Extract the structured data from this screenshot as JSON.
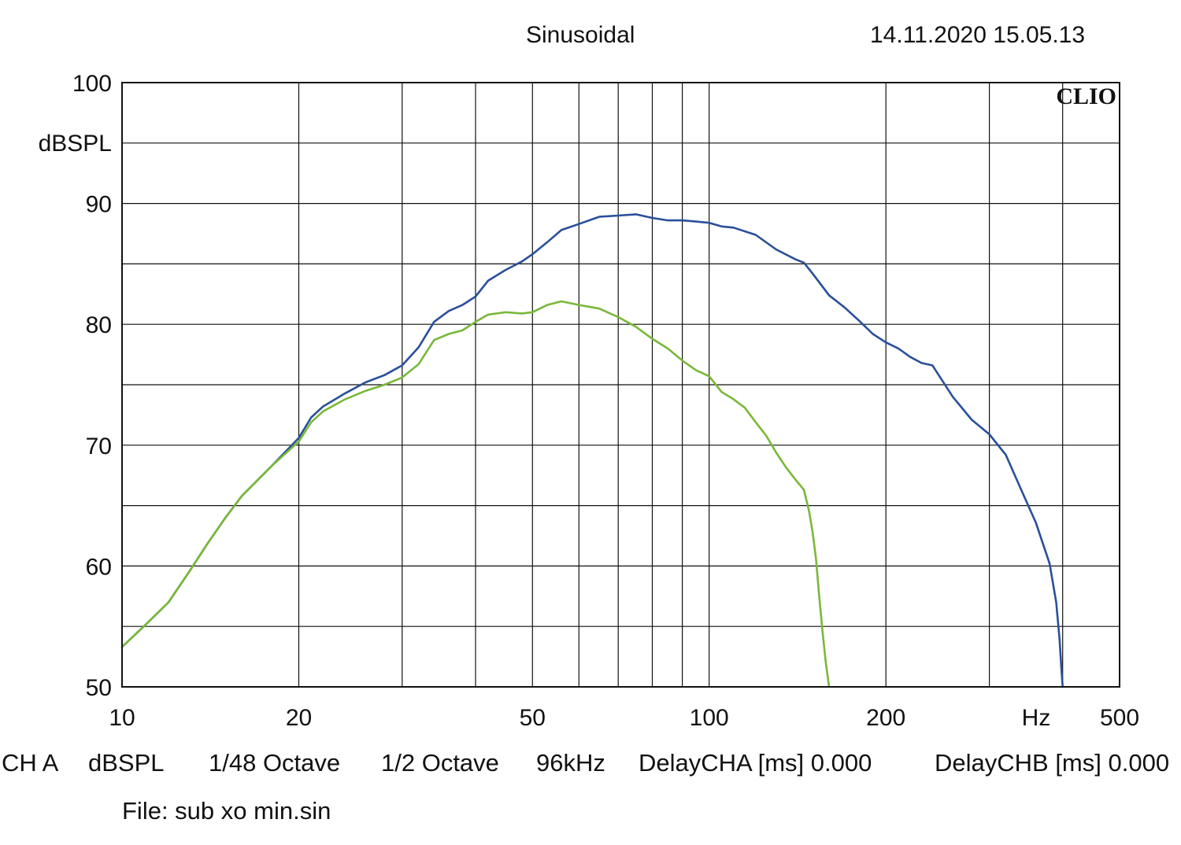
{
  "header": {
    "mode": "Sinusoidal",
    "timestamp": "14.11.2020 15.05.13",
    "brand": "CLIO"
  },
  "footer": {
    "channel": "CH A",
    "unit": "dBSPL",
    "resolution": "1/48 Octave",
    "smoothing": "1/2 Octave",
    "sample_rate": "96kHz",
    "delay_a": "DelayCHA [ms] 0.000",
    "delay_b": "DelayCHB [ms] 0.000",
    "file": "File: sub xo min.sin"
  },
  "chart_data": {
    "type": "line",
    "xscale": "log",
    "xlim": [
      10,
      500
    ],
    "ylim": [
      50,
      100
    ],
    "grid": true,
    "ylabel": "dBSPL",
    "xlabel": "Hz",
    "x_ticks": [
      {
        "value": 10,
        "label": "10"
      },
      {
        "value": 20,
        "label": "20"
      },
      {
        "value": 50,
        "label": "50"
      },
      {
        "value": 100,
        "label": "100"
      },
      {
        "value": 200,
        "label": "200"
      },
      {
        "value": 500,
        "label": "500"
      }
    ],
    "y_ticks": [
      {
        "value": 50,
        "label": "50"
      },
      {
        "value": 60,
        "label": "60"
      },
      {
        "value": 70,
        "label": "70"
      },
      {
        "value": 80,
        "label": "80"
      },
      {
        "value": 90,
        "label": "90"
      },
      {
        "value": 100,
        "label": "100"
      }
    ],
    "series": [
      {
        "color": "#2a4f9a",
        "x": [
          10,
          11,
          12,
          13,
          14,
          15,
          16,
          18,
          20,
          21,
          22,
          24,
          26,
          28,
          30,
          32,
          34,
          36,
          38,
          40,
          42,
          45,
          48,
          50,
          53,
          56,
          60,
          65,
          70,
          75,
          80,
          85,
          90,
          95,
          100,
          105,
          110,
          120,
          130,
          140,
          145,
          150,
          160,
          170,
          180,
          190,
          200,
          210,
          220,
          230,
          240,
          260,
          280,
          300,
          320,
          340,
          360,
          380,
          390,
          395,
          398,
          400
        ],
        "y": [
          53.3,
          55.2,
          57.0,
          59.5,
          61.9,
          64.0,
          65.8,
          68.3,
          70.6,
          72.3,
          73.2,
          74.3,
          75.2,
          75.8,
          76.6,
          78.1,
          80.2,
          81.1,
          81.6,
          82.3,
          83.6,
          84.5,
          85.2,
          85.8,
          86.8,
          87.8,
          88.3,
          88.9,
          89.0,
          89.1,
          88.8,
          88.6,
          88.6,
          88.5,
          88.4,
          88.1,
          88.0,
          87.4,
          86.2,
          85.4,
          85.1,
          84.2,
          82.4,
          81.4,
          80.3,
          79.2,
          78.5,
          78.0,
          77.3,
          76.8,
          76.6,
          74.0,
          72.1,
          70.9,
          69.2,
          66.3,
          63.6,
          60.2,
          57.0,
          54.0,
          51.5,
          50.0
        ]
      },
      {
        "color": "#79b83a",
        "x": [
          10,
          11,
          12,
          13,
          14,
          15,
          16,
          18,
          20,
          21,
          22,
          24,
          26,
          28,
          30,
          32,
          34,
          36,
          38,
          40,
          42,
          45,
          48,
          50,
          53,
          56,
          60,
          65,
          70,
          75,
          80,
          85,
          90,
          95,
          100,
          105,
          110,
          115,
          120,
          125,
          130,
          135,
          140,
          145,
          148,
          150,
          152,
          154,
          156,
          158,
          160
        ],
        "y": [
          53.3,
          55.2,
          57.0,
          59.5,
          61.9,
          64.0,
          65.8,
          68.3,
          70.3,
          71.9,
          72.8,
          73.8,
          74.5,
          75.0,
          75.6,
          76.7,
          78.7,
          79.2,
          79.5,
          80.2,
          80.8,
          81.0,
          80.9,
          81.0,
          81.6,
          81.9,
          81.6,
          81.3,
          80.6,
          79.8,
          78.8,
          78.0,
          77.0,
          76.2,
          75.7,
          74.4,
          73.8,
          73.1,
          71.9,
          70.8,
          69.4,
          68.2,
          67.2,
          66.3,
          64.5,
          62.8,
          60.6,
          57.4,
          54.5,
          52.0,
          50.0
        ]
      }
    ]
  }
}
